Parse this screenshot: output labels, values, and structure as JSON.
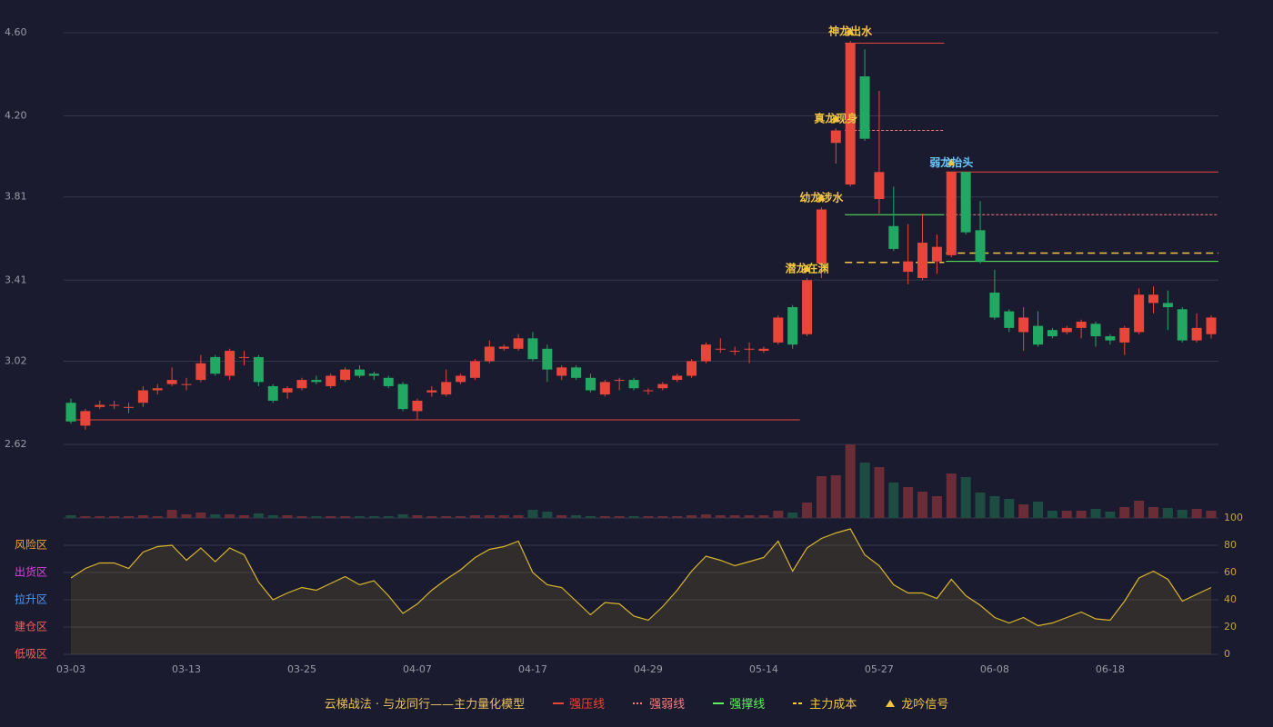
{
  "chart_data": {
    "type": "candlestick",
    "categories": [
      "03-03",
      null,
      null,
      null,
      null,
      null,
      null,
      null,
      "03-13",
      null,
      null,
      null,
      null,
      null,
      null,
      null,
      "03-25",
      null,
      null,
      null,
      null,
      null,
      null,
      null,
      "04-07",
      null,
      null,
      null,
      null,
      null,
      null,
      null,
      "04-17",
      null,
      null,
      null,
      null,
      null,
      null,
      null,
      "04-29",
      null,
      null,
      null,
      null,
      null,
      null,
      null,
      "05-14",
      null,
      null,
      null,
      null,
      null,
      null,
      null,
      "05-27",
      null,
      null,
      null,
      null,
      null,
      null,
      null,
      "06-08",
      null,
      null,
      null,
      null,
      null,
      null,
      null,
      "06-18",
      null,
      null,
      null,
      null,
      null,
      null,
      null
    ],
    "open": [
      2.82,
      2.71,
      2.8,
      2.81,
      2.8,
      2.82,
      2.88,
      2.91,
      2.91,
      2.93,
      3.04,
      2.95,
      3.04,
      3.04,
      2.9,
      2.87,
      2.89,
      2.93,
      2.9,
      2.93,
      2.98,
      2.96,
      2.94,
      2.91,
      2.78,
      2.87,
      2.86,
      2.92,
      2.94,
      3.02,
      3.08,
      3.08,
      3.13,
      3.08,
      2.95,
      2.99,
      2.94,
      2.86,
      2.93,
      2.93,
      2.88,
      2.89,
      2.93,
      2.95,
      3.02,
      3.08,
      3.07,
      3.08,
      3.07,
      3.11,
      3.28,
      3.15,
      3.49,
      4.07,
      3.87,
      4.39,
      3.8,
      3.67,
      3.45,
      3.42,
      3.5,
      3.53,
      3.93,
      3.65,
      3.35,
      3.26,
      3.16,
      3.19,
      3.17,
      3.16,
      3.18,
      3.2,
      3.14,
      3.11,
      3.16,
      3.3,
      3.3,
      3.27,
      3.12,
      3.15
    ],
    "high": [
      2.84,
      2.79,
      2.83,
      2.83,
      2.82,
      2.9,
      2.91,
      2.99,
      2.94,
      3.05,
      3.05,
      3.08,
      3.07,
      3.05,
      2.91,
      2.9,
      2.94,
      2.95,
      2.96,
      2.99,
      3.0,
      2.97,
      2.95,
      2.92,
      2.84,
      2.9,
      2.98,
      2.96,
      3.03,
      3.12,
      3.1,
      3.15,
      3.16,
      3.1,
      3.0,
      3.0,
      2.96,
      2.93,
      2.94,
      2.94,
      2.89,
      2.92,
      2.96,
      3.03,
      3.11,
      3.13,
      3.09,
      3.11,
      3.09,
      3.24,
      3.29,
      3.42,
      3.76,
      4.14,
      4.56,
      4.52,
      4.32,
      3.86,
      3.68,
      3.73,
      3.63,
      3.93,
      3.93,
      3.79,
      3.46,
      3.27,
      3.28,
      3.26,
      3.18,
      3.19,
      3.22,
      3.21,
      3.15,
      3.19,
      3.37,
      3.38,
      3.36,
      3.28,
      3.25,
      3.24
    ],
    "low": [
      2.72,
      2.69,
      2.79,
      2.79,
      2.77,
      2.8,
      2.86,
      2.9,
      2.88,
      2.92,
      2.95,
      2.93,
      3.0,
      2.9,
      2.82,
      2.84,
      2.88,
      2.91,
      2.89,
      2.92,
      2.94,
      2.93,
      2.89,
      2.78,
      2.74,
      2.85,
      2.85,
      2.91,
      2.93,
      3.01,
      3.07,
      3.07,
      3.02,
      2.92,
      2.93,
      2.93,
      2.87,
      2.85,
      2.88,
      2.88,
      2.86,
      2.88,
      2.92,
      2.94,
      3.01,
      3.06,
      3.05,
      3.01,
      3.06,
      3.1,
      3.08,
      3.14,
      3.42,
      3.97,
      3.86,
      4.08,
      3.73,
      3.55,
      3.39,
      3.41,
      3.44,
      3.52,
      3.63,
      3.49,
      3.22,
      3.16,
      3.07,
      3.09,
      3.13,
      3.15,
      3.13,
      3.09,
      3.1,
      3.05,
      3.15,
      3.25,
      3.17,
      3.11,
      3.11,
      3.13
    ],
    "close": [
      2.73,
      2.78,
      2.81,
      2.81,
      2.8,
      2.88,
      2.89,
      2.93,
      2.91,
      3.01,
      2.96,
      3.07,
      3.04,
      2.92,
      2.83,
      2.89,
      2.93,
      2.92,
      2.95,
      2.98,
      2.95,
      2.95,
      2.9,
      2.79,
      2.83,
      2.88,
      2.92,
      2.95,
      3.02,
      3.09,
      3.09,
      3.13,
      3.03,
      2.98,
      2.99,
      2.94,
      2.88,
      2.92,
      2.93,
      2.89,
      2.88,
      2.91,
      2.95,
      3.02,
      3.1,
      3.08,
      3.07,
      3.08,
      3.08,
      3.23,
      3.1,
      3.41,
      3.75,
      4.13,
      4.55,
      4.09,
      3.93,
      3.56,
      3.5,
      3.59,
      3.57,
      3.93,
      3.64,
      3.5,
      3.23,
      3.18,
      3.23,
      3.1,
      3.14,
      3.18,
      3.21,
      3.14,
      3.12,
      3.18,
      3.34,
      3.34,
      3.28,
      3.12,
      3.18,
      3.23
    ],
    "up_color": "#e8463a",
    "down_color": "#22a863",
    "ylim": [
      2.62,
      4.6
    ],
    "yticks": [
      {
        "value": 4.6,
        "label": "4.60"
      },
      {
        "value": 4.2,
        "label": "4.20"
      },
      3.81,
      3.41,
      3.02,
      2.62
    ],
    "grid": true,
    "volume": {
      "values": [
        3,
        2,
        2,
        2,
        2,
        3,
        2,
        9,
        4,
        6,
        4,
        4,
        3,
        5,
        3,
        3,
        2,
        2,
        2,
        2,
        2,
        2,
        2,
        4,
        3,
        2,
        2,
        2,
        3,
        3,
        3,
        3,
        9,
        7,
        3,
        3,
        2,
        2,
        2,
        2,
        2,
        2,
        2,
        3,
        4,
        3,
        3,
        3,
        3,
        8,
        6,
        17,
        46,
        47,
        81,
        61,
        56,
        39,
        34,
        29,
        24,
        49,
        45,
        28,
        24,
        21,
        15,
        18,
        8,
        8,
        8,
        10,
        7,
        12,
        19,
        12,
        11,
        9,
        10,
        8
      ],
      "up_color": "#6a2c36",
      "down_color": "#1d4d42"
    },
    "oscillator": {
      "values": [
        56,
        63,
        67,
        67,
        63,
        75,
        79,
        80,
        69,
        78,
        68,
        78,
        73,
        53,
        40,
        45,
        49,
        47,
        52,
        57,
        51,
        54,
        43,
        30,
        37,
        47,
        55,
        62,
        71,
        77,
        79,
        83,
        60,
        51,
        49,
        39,
        29,
        38,
        37,
        28,
        25,
        35,
        47,
        61,
        72,
        69,
        65,
        68,
        71,
        83,
        61,
        78,
        85,
        89,
        92,
        73,
        65,
        51,
        45,
        45,
        41,
        55,
        43,
        36,
        27,
        23,
        27,
        21,
        23,
        27,
        31,
        26,
        25,
        39,
        56,
        61,
        55,
        39,
        44,
        49
      ],
      "color": "#d9b52c",
      "ylim": [
        0,
        100
      ],
      "yticks": [
        100,
        80,
        60,
        40,
        20,
        0
      ],
      "zones": [
        {
          "label": "风险区",
          "value": 80,
          "color": "#f5a623"
        },
        {
          "label": "出货区",
          "value": 60,
          "color": "#e040e0"
        },
        {
          "label": "拉升区",
          "value": 40,
          "color": "#4f9cff"
        },
        {
          "label": "建仓区",
          "value": 20,
          "color": "#ff5a5a"
        },
        {
          "label": "低吸区",
          "value": 0,
          "color": "#ff5a5a"
        }
      ]
    },
    "signals": [
      {
        "index": 51,
        "label": "潜龙在渊",
        "color": "#f5c542"
      },
      {
        "index": 52,
        "label": "幼龙涉水",
        "color": "#f5c542"
      },
      {
        "index": 53,
        "label": "真龙现身",
        "color": "#f5c542"
      },
      {
        "index": 54,
        "label": "神龙出水",
        "color": "#f5c542"
      },
      {
        "index": 61,
        "label": "弱龙抬头",
        "color": "#6cc8ff"
      }
    ],
    "legend": {
      "title": "云梯战法 · 与龙同行——主力量化模型",
      "items": [
        {
          "label": "强压线",
          "color": "#e8463a",
          "style": "solid",
          "segments": [
            {
              "from": 54,
              "to": 60,
              "value": 4.55
            },
            {
              "from": 61,
              "to": 79,
              "value": 3.93
            },
            {
              "from": 0,
              "to": 50,
              "value": 2.738
            }
          ]
        },
        {
          "label": "强弱线",
          "color": "#f08080",
          "style": "dotted",
          "segments": [
            {
              "from": 54,
              "to": 60,
              "value": 4.13
            },
            {
              "from": 61,
              "to": 79,
              "value": 3.725
            }
          ]
        },
        {
          "label": "强撑线",
          "color": "#5cf25c",
          "style": "solid",
          "segments": [
            {
              "from": 54,
              "to": 60,
              "value": 3.725
            },
            {
              "from": 61,
              "to": 79,
              "value": 3.5
            }
          ]
        },
        {
          "label": "主力成本",
          "color": "#f5c542",
          "style": "dashed",
          "segments": [
            {
              "from": 54,
              "to": 60,
              "value": 3.495
            },
            {
              "from": 61,
              "to": 79,
              "value": 3.54
            }
          ]
        },
        {
          "label": "龙吟信号",
          "color": "#f5c542",
          "style": "triangle"
        }
      ]
    }
  }
}
